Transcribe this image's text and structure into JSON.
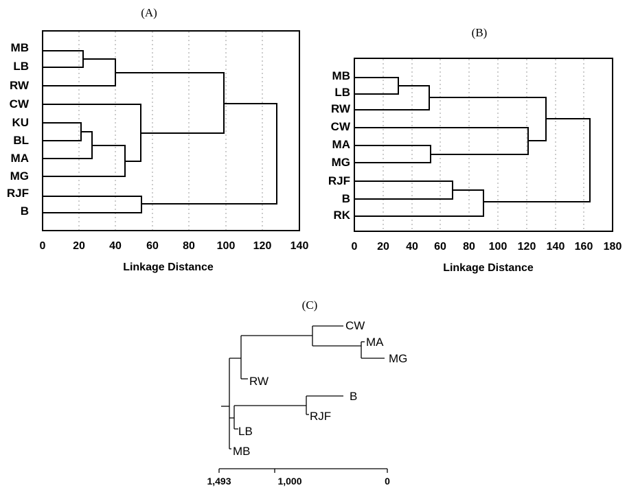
{
  "panels": [
    {
      "id": "A",
      "title": "(A)",
      "axis_label": "Linkage Distance",
      "xlim": [
        0,
        140
      ],
      "ticks": [
        0,
        20,
        40,
        60,
        80,
        100,
        120,
        140
      ],
      "leaves": [
        "MB",
        "LB",
        "RW",
        "CW",
        "KU",
        "BL",
        "MA",
        "MG",
        "RJF",
        "B"
      ],
      "merges": [
        {
          "a": "MB",
          "b": "LB",
          "height": 22
        },
        {
          "a": "BL",
          "b": "KU",
          "height": 21
        },
        {
          "a": "MA",
          "b": "BL+KU",
          "height": 27
        },
        {
          "a": "MG",
          "b": "MA+BL+KU",
          "height": 45
        },
        {
          "a": "CW",
          "b": "MG+MA+BL+KU",
          "height": 55
        },
        {
          "a": "RW",
          "b": "MB+LB",
          "height": 40
        },
        {
          "a": "RJF",
          "b": "B",
          "height": 55
        },
        {
          "a": "MB+LB+RW",
          "b": "CW+KU+BL+MA+MG",
          "height": 100
        },
        {
          "a": "all-upper",
          "b": "RJF+B",
          "height": 127
        }
      ]
    },
    {
      "id": "B",
      "title": "(B)",
      "axis_label": "Linkage Distance",
      "xlim": [
        0,
        180
      ],
      "ticks": [
        0,
        20,
        40,
        60,
        80,
        100,
        120,
        140,
        160,
        180
      ],
      "leaves": [
        "MB",
        "LB",
        "RW",
        "CW",
        "MA",
        "MG",
        "RJF",
        "B",
        "RK"
      ],
      "merges": [
        {
          "a": "MB",
          "b": "LB",
          "height": 31
        },
        {
          "a": "RW",
          "b": "MB+LB",
          "height": 52
        },
        {
          "a": "MA",
          "b": "MG",
          "height": 53
        },
        {
          "a": "CW",
          "b": "MA+MG",
          "height": 121
        },
        {
          "a": "MB+LB+RW",
          "b": "CW+MA+MG",
          "height": 133
        },
        {
          "a": "RJF",
          "b": "B",
          "height": 68
        },
        {
          "a": "RK",
          "b": "RJF+B",
          "height": 89
        },
        {
          "a": "all-upper",
          "b": "RJF+B+RK",
          "height": 162
        }
      ]
    }
  ],
  "panelC": {
    "title": "(C)",
    "leaves": [
      "CW",
      "MA",
      "MG",
      "RW",
      "B",
      "RJF",
      "LB",
      "MB"
    ],
    "ticks": [
      "1,493",
      "1,000",
      "0"
    ]
  }
}
